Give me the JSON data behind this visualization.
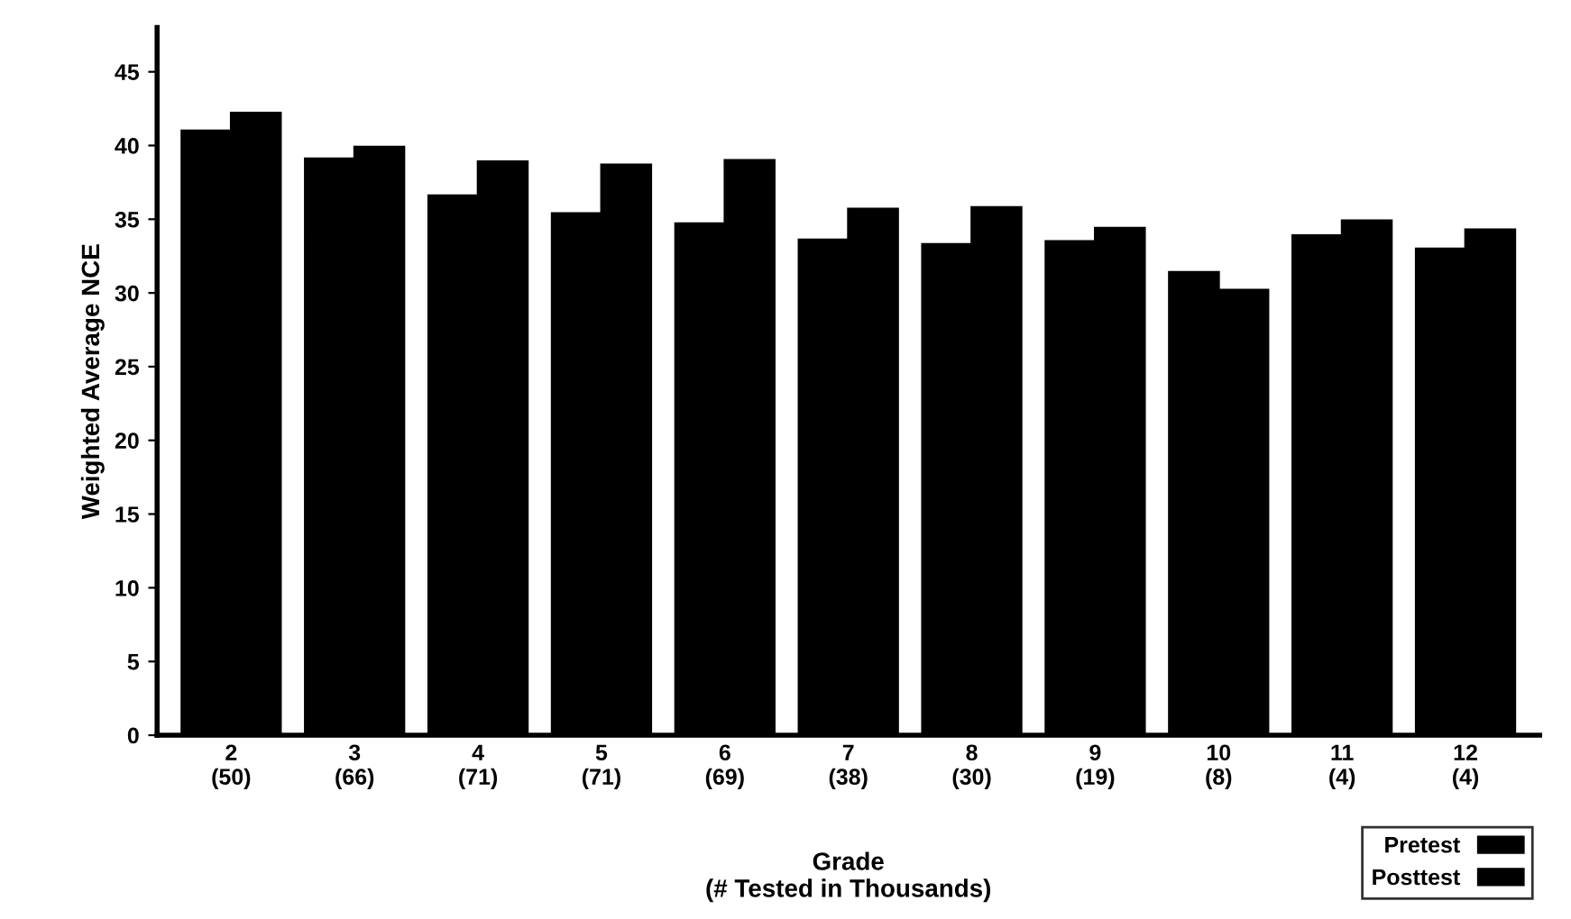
{
  "chart_data": {
    "type": "bar",
    "xlabel": "Grade\n(# Tested in Thousands)",
    "ylabel": "Weighted Average NCE",
    "categories": [
      "2\n(50)",
      "3\n(66)",
      "4\n(71)",
      "5\n(71)",
      "6\n(69)",
      "7\n(38)",
      "8\n(30)",
      "9\n(19)",
      "10\n(8)",
      "11\n(4)",
      "12\n(4)"
    ],
    "series": [
      {
        "name": "Pretest",
        "color": "#000000",
        "values": [
          41.0,
          39.1,
          36.6,
          35.4,
          34.7,
          33.6,
          33.3,
          33.5,
          31.4,
          33.9,
          33.0
        ]
      },
      {
        "name": "Posttest",
        "color": "#000000",
        "values": [
          42.2,
          39.9,
          38.9,
          38.7,
          39.0,
          35.7,
          35.8,
          34.4,
          30.2,
          34.9,
          34.3
        ]
      }
    ],
    "ylim": [
      0,
      48
    ],
    "yticks": [
      0,
      5,
      10,
      15,
      20,
      25,
      30,
      35,
      40,
      45
    ],
    "grid": false,
    "legend": "bottom right"
  }
}
